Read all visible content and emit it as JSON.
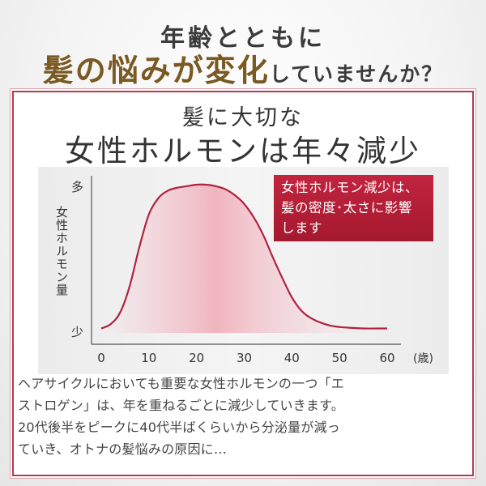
{
  "header": {
    "line1": "年齢とともに",
    "line2_emphasis": "髪の悩みが変化",
    "line2_rest": "していませんか？"
  },
  "card": {
    "title_line1": "髪に大切な",
    "title_line2": "女性ホルモンは年々減少"
  },
  "callout": {
    "lines": [
      "女性ホルモン減少は、",
      "髪の密度･太さに影響",
      "します"
    ]
  },
  "description": {
    "lines": [
      "ヘアサイクルにおいても重要な女性ホルモンの一つ「エ",
      "ストロゲン」は、年を重ねるごとに減少していきます。",
      "20代後半をピークに40代半ばくらいから分泌量が減っ",
      "ていき、オトナの髪悩みの原因に…"
    ]
  },
  "colors": {
    "curve": "#b0233e",
    "callout": "#b51f38",
    "emphasis": "#7a5a22"
  },
  "chart_data": {
    "type": "area",
    "title": "女性ホルモンは年々減少",
    "xlabel": "(歳)",
    "ylabel": "女性ホルモン量",
    "x_ticks": [
      "0",
      "10",
      "20",
      "30",
      "40",
      "50",
      "60"
    ],
    "y_ticks": [
      "少",
      "多"
    ],
    "xlim": [
      0,
      60
    ],
    "ylim": [
      0,
      100
    ],
    "grid": false,
    "legend": "none",
    "series": [
      {
        "x": [
          0,
          2,
          4,
          6,
          8,
          10,
          12,
          14,
          16,
          18,
          20,
          22,
          24,
          26,
          28,
          30,
          32,
          34,
          36,
          38,
          40,
          42,
          44,
          46,
          48,
          50,
          52,
          55,
          58,
          60
        ],
        "values": [
          3,
          6,
          14,
          32,
          58,
          80,
          91,
          96,
          98,
          99,
          100,
          100,
          99,
          97,
          93,
          87,
          78,
          66,
          51,
          37,
          24,
          15,
          10,
          7,
          5,
          4,
          3.5,
          3,
          3,
          3
        ]
      }
    ]
  }
}
